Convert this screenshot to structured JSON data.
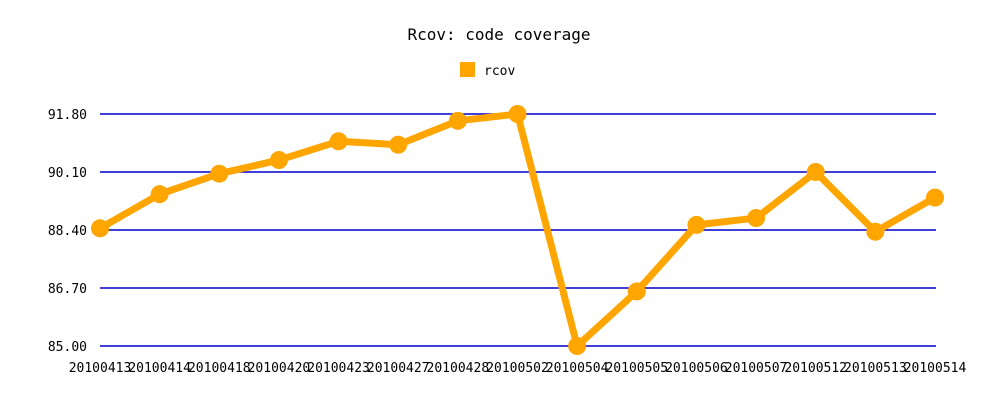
{
  "chart_data": {
    "type": "line",
    "title": "Rcov: code coverage",
    "xlabel": "",
    "ylabel": "",
    "categories": [
      "20100413",
      "20100414",
      "20100418",
      "20100420",
      "20100423",
      "20100427",
      "20100428",
      "20100502",
      "20100504",
      "20100505",
      "20100506",
      "20100507",
      "20100512",
      "20100513",
      "20100514"
    ],
    "series": [
      {
        "name": "rcov",
        "color": "#FFA500",
        "values": [
          88.45,
          89.45,
          90.05,
          90.45,
          91.0,
          90.9,
          91.6,
          91.8,
          85.0,
          86.6,
          88.55,
          88.75,
          90.1,
          88.35,
          89.35
        ]
      }
    ],
    "yticks": [
      85.0,
      86.7,
      88.4,
      90.1,
      91.8
    ],
    "ytick_labels": [
      "85.00",
      "86.70",
      "88.40",
      "90.10",
      "91.80"
    ],
    "ylim": [
      85.0,
      91.8
    ],
    "grid": true,
    "grid_color": "#0000CC",
    "legend_position": "top-center"
  }
}
